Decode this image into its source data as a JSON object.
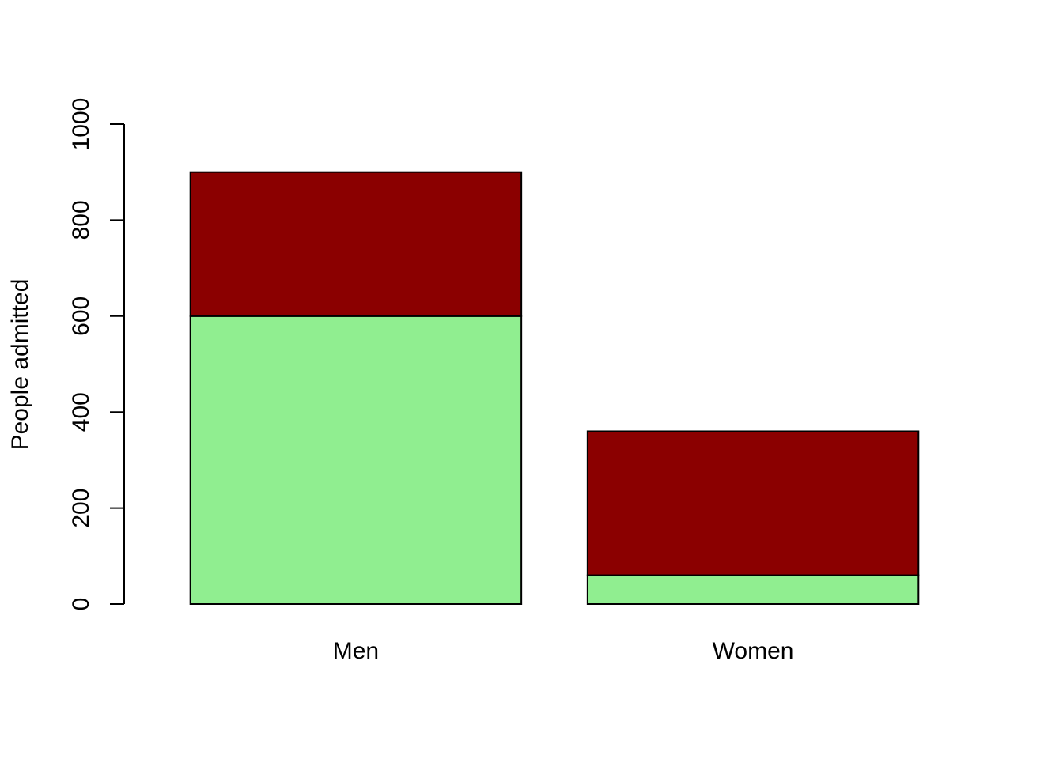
{
  "chart_data": {
    "type": "bar",
    "stacked": true,
    "title": "",
    "xlabel": "",
    "ylabel": "People admitted",
    "ylim": [
      0,
      1000
    ],
    "yticks": [
      0,
      200,
      400,
      600,
      800,
      1000
    ],
    "categories": [
      "Men",
      "Women"
    ],
    "series": [
      {
        "values": [
          600,
          60
        ],
        "color": "#90EE90"
      },
      {
        "values": [
          300,
          300
        ],
        "color": "#8B0000"
      }
    ],
    "grid": false,
    "legend": "none"
  }
}
